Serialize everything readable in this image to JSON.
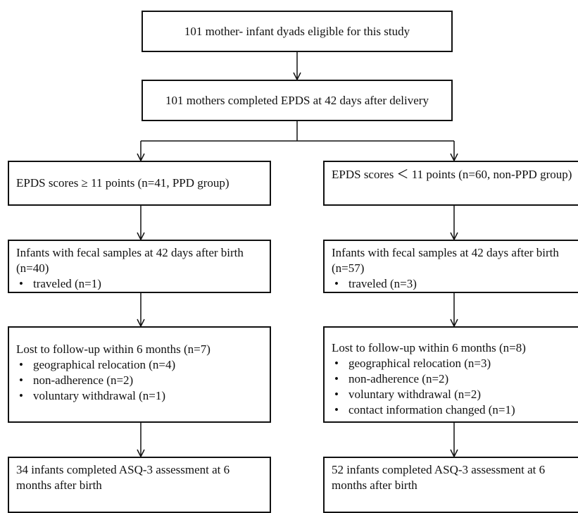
{
  "boxes": {
    "eligible": "101 mother- infant dyads eligible for this study",
    "completed_epds": "101 mothers completed EPDS at 42 days after delivery"
  },
  "left": {
    "group": "EPDS scores ≥ 11 points (n=41, PPD group)",
    "fecal": {
      "title": "Infants with fecal samples at 42 days after birth (n=40)",
      "items": [
        "traveled (n=1)"
      ]
    },
    "lost": {
      "title": "Lost to follow-up within 6 months (n=7)",
      "items": [
        "geographical relocation (n=4)",
        "non-adherence (n=2)",
        "voluntary withdrawal (n=1)"
      ]
    },
    "final": "34 infants completed ASQ-3 assessment at 6 months after birth"
  },
  "right": {
    "group": "EPDS scores ＜ 11 points (n=60, non-PPD group)",
    "fecal": {
      "title": "Infants with fecal samples at 42 days after birth (n=57)",
      "items": [
        "traveled (n=3)"
      ]
    },
    "lost": {
      "title": "Lost to follow-up within 6 months (n=8)",
      "items": [
        "geographical relocation (n=3)",
        "non-adherence (n=2)",
        "voluntary withdrawal (n=2)",
        "contact information changed (n=1)"
      ]
    },
    "final": "52 infants completed ASQ-3 assessment at 6 months after birth"
  }
}
